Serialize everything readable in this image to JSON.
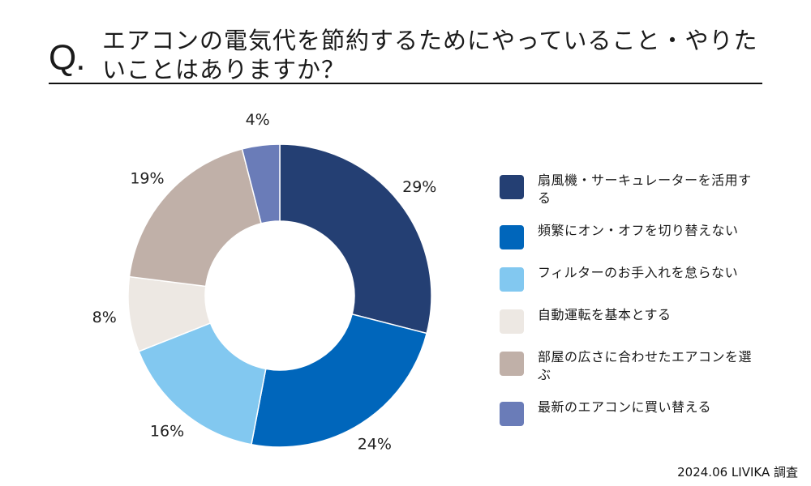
{
  "header": {
    "q_mark": "Q.",
    "title": "エアコンの電気代を節約するためにやっていること・やりたいことはありますか？"
  },
  "chart_data": {
    "type": "pie",
    "donut": true,
    "categories": [
      "扇風機・サーキュレーターを活用する",
      "頻繁にオン・オフを切り替えない",
      "フィルターのお手入れを怠らない",
      "自動運転を基本とする",
      "部屋の広さに合わせたエアコンを選ぶ",
      "最新のエアコンに買い替える"
    ],
    "values": [
      29,
      24,
      16,
      8,
      19,
      4
    ],
    "labels": [
      "29%",
      "24%",
      "16%",
      "8%",
      "19%",
      "4%"
    ],
    "colors": [
      "#243f73",
      "#0066bb",
      "#82c8f0",
      "#ede8e3",
      "#c0b0a8",
      "#6a7cb8"
    ],
    "legend": "right"
  },
  "footer": {
    "source": "2024.06 LIVIKA 調査"
  }
}
